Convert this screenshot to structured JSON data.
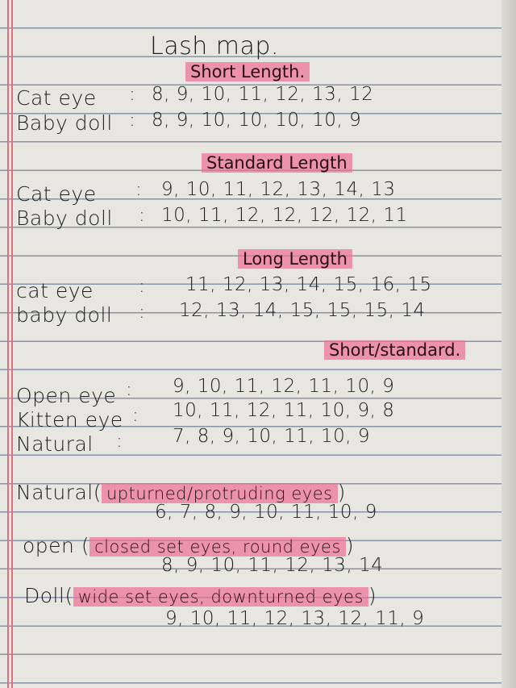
{
  "title": "Lash map.",
  "sections": [
    {
      "heading": "Short Length.",
      "rows": [
        {
          "label": "Cat eye",
          "values": "8, 9, 10, 11, 12, 13, 12"
        },
        {
          "label": "Baby doll",
          "values": "8, 9, 10, 10, 10, 10, 9"
        }
      ]
    },
    {
      "heading": "Standard Length",
      "rows": [
        {
          "label": "Cat eye",
          "values": "9, 10, 11, 12, 13, 14, 13"
        },
        {
          "label": "Baby doll",
          "values": "10, 11, 12, 12, 12, 12, 11"
        }
      ]
    },
    {
      "heading": "Long Length",
      "rows": [
        {
          "label": "cat eye",
          "values": "11, 12, 13, 14, 15, 16, 15"
        },
        {
          "label": "baby doll",
          "values": "12, 13, 14, 15, 15, 15, 14"
        }
      ]
    },
    {
      "heading": "Short/standard.",
      "rows": [
        {
          "label": "Open eye",
          "values": "9, 10, 11, 12, 11, 10, 9"
        },
        {
          "label": "Kitten eye",
          "values": "10, 11, 12, 11, 10, 9, 8"
        },
        {
          "label": "Natural",
          "values": "7, 8, 9, 10, 11, 10, 9"
        }
      ]
    }
  ],
  "styles": [
    {
      "name": "Natural",
      "eye_types": "upturned/protruding eyes",
      "values": "6, 7, 8, 9, 10, 11, 10, 9"
    },
    {
      "name": "open",
      "eye_types": "closed set eyes, round eyes",
      "values": "8, 9, 10, 11, 12, 13, 14"
    },
    {
      "name": "Doll",
      "eye_types": "wide set eyes, downturned eyes",
      "values": "9, 10, 11, 12, 13, 12, 11, 9"
    }
  ],
  "colon": ":",
  "open_paren": "(",
  "close_paren": ")",
  "colors": {
    "highlight": "#ee6e96",
    "paper": "#e8e6e1",
    "rule_line": "#8a93a6",
    "margin_line": "#d9727a"
  }
}
